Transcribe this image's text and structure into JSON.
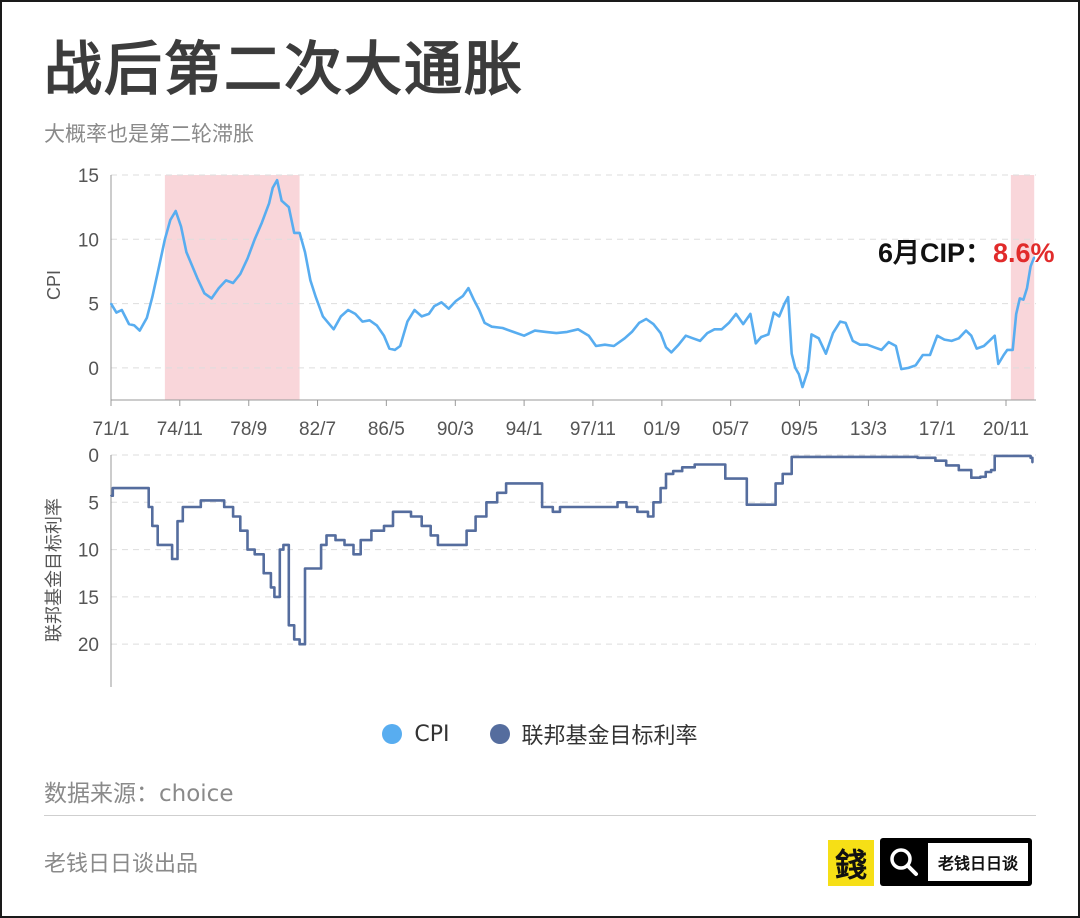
{
  "header": {
    "title": "战后第二次大通胀",
    "subtitle": "大概率也是第二轮滞胀"
  },
  "annotation": {
    "prefix": "6月CIP：",
    "value": "8.6%"
  },
  "legend": {
    "items": [
      {
        "label": "CPI",
        "color": "#58adf0"
      },
      {
        "label": "联邦基金目标利率",
        "color": "#556d9e"
      }
    ]
  },
  "footer": {
    "source": "数据来源：choice",
    "credit": "老钱日日谈出品",
    "brand_name": "老钱日日谈",
    "logo_char": "錢"
  },
  "colors": {
    "cpi_line": "#58adf0",
    "rate_line": "#556d9e",
    "highlight": "#f9d6da",
    "annotation_value": "#e12b2b",
    "grid": "#dddddd",
    "axis_text": "#555555"
  },
  "chart_data": [
    {
      "type": "line",
      "ylabel": "CPI",
      "ylim": [
        -2.5,
        15
      ],
      "yticks": [
        0,
        5,
        10,
        15
      ],
      "xlim": [
        1971.0,
        2022.5
      ],
      "xticks": [
        {
          "x": 1971.0,
          "label": "71/1"
        },
        {
          "x": 1974.83,
          "label": "74/11"
        },
        {
          "x": 1978.67,
          "label": "78/9"
        },
        {
          "x": 1982.5,
          "label": "82/7"
        },
        {
          "x": 1986.33,
          "label": "86/5"
        },
        {
          "x": 1990.17,
          "label": "90/3"
        },
        {
          "x": 1994.0,
          "label": "94/1"
        },
        {
          "x": 1997.83,
          "label": "97/11"
        },
        {
          "x": 2001.67,
          "label": "01/9"
        },
        {
          "x": 2005.5,
          "label": "05/7"
        },
        {
          "x": 2009.33,
          "label": "09/5"
        },
        {
          "x": 2013.17,
          "label": "13/3"
        },
        {
          "x": 2017.0,
          "label": "17/1"
        },
        {
          "x": 2020.83,
          "label": "20/11"
        }
      ],
      "grid": true,
      "highlight_ranges": [
        [
          1974.0,
          1981.5
        ],
        [
          2021.1,
          2022.4
        ]
      ],
      "series": [
        {
          "name": "CPI",
          "x": [
            1971.0,
            1971.3,
            1971.6,
            1972.0,
            1972.3,
            1972.6,
            1973.0,
            1973.3,
            1973.6,
            1974.0,
            1974.3,
            1974.6,
            1974.9,
            1975.2,
            1975.5,
            1975.8,
            1976.2,
            1976.6,
            1977.0,
            1977.4,
            1977.8,
            1978.2,
            1978.6,
            1979.0,
            1979.4,
            1979.8,
            1980.0,
            1980.25,
            1980.5,
            1980.9,
            1981.2,
            1981.5,
            1981.8,
            1982.1,
            1982.4,
            1982.8,
            1983.1,
            1983.4,
            1983.8,
            1984.2,
            1984.6,
            1985.0,
            1985.4,
            1985.8,
            1986.2,
            1986.5,
            1986.8,
            1987.1,
            1987.5,
            1987.9,
            1988.3,
            1988.7,
            1989.0,
            1989.4,
            1989.8,
            1990.2,
            1990.6,
            1990.9,
            1991.2,
            1991.5,
            1991.8,
            1992.2,
            1992.8,
            1993.4,
            1994.0,
            1994.6,
            1995.2,
            1995.8,
            1996.4,
            1997.0,
            1997.6,
            1998.0,
            1998.5,
            1999.0,
            1999.6,
            2000.0,
            2000.4,
            2000.8,
            2001.2,
            2001.6,
            2001.9,
            2002.2,
            2002.6,
            2003.0,
            2003.4,
            2003.8,
            2004.2,
            2004.6,
            2005.0,
            2005.4,
            2005.8,
            2006.2,
            2006.6,
            2006.9,
            2007.2,
            2007.6,
            2007.9,
            2008.2,
            2008.5,
            2008.7,
            2008.9,
            2009.1,
            2009.3,
            2009.5,
            2009.8,
            2010.0,
            2010.4,
            2010.8,
            2011.2,
            2011.6,
            2011.9,
            2012.3,
            2012.7,
            2013.1,
            2013.5,
            2013.9,
            2014.3,
            2014.7,
            2015.0,
            2015.4,
            2015.8,
            2016.2,
            2016.6,
            2017.0,
            2017.4,
            2017.8,
            2018.2,
            2018.6,
            2018.9,
            2019.2,
            2019.6,
            2019.9,
            2020.2,
            2020.4,
            2020.7,
            2020.9,
            2021.2,
            2021.4,
            2021.6,
            2021.8,
            2022.0,
            2022.2,
            2022.4
          ],
          "values": [
            5.0,
            4.3,
            4.5,
            3.4,
            3.3,
            2.9,
            3.9,
            5.5,
            7.4,
            10.0,
            11.5,
            12.2,
            11.0,
            9.0,
            8.0,
            7.0,
            5.8,
            5.4,
            6.2,
            6.8,
            6.6,
            7.3,
            8.5,
            10.0,
            11.3,
            12.8,
            14.0,
            14.6,
            13.0,
            12.5,
            10.5,
            10.5,
            9.0,
            6.8,
            5.5,
            4.0,
            3.5,
            3.0,
            4.0,
            4.5,
            4.2,
            3.6,
            3.7,
            3.3,
            2.5,
            1.5,
            1.4,
            1.7,
            3.6,
            4.5,
            4.0,
            4.2,
            4.8,
            5.1,
            4.6,
            5.2,
            5.6,
            6.2,
            5.3,
            4.5,
            3.5,
            3.2,
            3.1,
            2.8,
            2.5,
            2.9,
            2.8,
            2.7,
            2.8,
            3.0,
            2.5,
            1.7,
            1.8,
            1.7,
            2.3,
            2.8,
            3.5,
            3.8,
            3.4,
            2.7,
            1.6,
            1.2,
            1.8,
            2.5,
            2.3,
            2.1,
            2.7,
            3.0,
            3.0,
            3.5,
            4.2,
            3.4,
            4.2,
            1.9,
            2.4,
            2.6,
            4.3,
            4.0,
            5.0,
            5.5,
            1.1,
            0.0,
            -0.5,
            -1.5,
            -0.2,
            2.6,
            2.3,
            1.1,
            2.7,
            3.6,
            3.5,
            2.1,
            1.8,
            1.8,
            1.6,
            1.4,
            2.0,
            1.7,
            -0.1,
            0.0,
            0.2,
            1.0,
            1.0,
            2.5,
            2.2,
            2.1,
            2.3,
            2.9,
            2.5,
            1.5,
            1.7,
            2.1,
            2.5,
            0.3,
            1.0,
            1.4,
            1.4,
            4.2,
            5.4,
            5.3,
            6.2,
            7.9,
            8.6
          ]
        }
      ]
    },
    {
      "type": "line",
      "ylabel": "联邦基金目标利率",
      "ylim": [
        24,
        0
      ],
      "yticks": [
        0,
        5,
        10,
        15,
        20
      ],
      "xlim": [
        1971.0,
        2022.5
      ],
      "grid": true,
      "series": [
        {
          "name": "联邦基金目标利率",
          "step": true,
          "x": [
            1971.0,
            1971.1,
            1972.9,
            1973.1,
            1973.3,
            1973.6,
            1974.4,
            1974.7,
            1975.0,
            1975.5,
            1976.0,
            1976.6,
            1977.3,
            1977.8,
            1978.2,
            1978.6,
            1979.0,
            1979.5,
            1979.9,
            1980.1,
            1980.4,
            1980.6,
            1980.9,
            1981.2,
            1981.5,
            1981.8,
            1982.2,
            1982.7,
            1983.0,
            1983.5,
            1984.0,
            1984.5,
            1984.9,
            1985.5,
            1986.2,
            1986.7,
            1987.2,
            1987.7,
            1988.3,
            1988.8,
            1989.2,
            1989.6,
            1990.8,
            1991.3,
            1991.9,
            1992.5,
            1993.0,
            1993.5,
            1994.0,
            1994.5,
            1995.0,
            1995.6,
            1996.0,
            1997.2,
            1998.6,
            1999.2,
            1999.7,
            2000.3,
            2000.9,
            2001.2,
            2001.6,
            2001.9,
            2002.3,
            2002.8,
            2003.5,
            2004.5,
            2005.2,
            2006.4,
            2007.6,
            2008.0,
            2008.4,
            2008.9,
            2012.0,
            2015.9,
            2016.9,
            2017.5,
            2018.2,
            2018.9,
            2019.4,
            2019.7,
            2020.0,
            2020.2,
            2022.2,
            2022.3
          ],
          "values": [
            4.3,
            3.5,
            3.5,
            5.5,
            7.5,
            9.5,
            11.0,
            7.0,
            5.5,
            5.5,
            4.8,
            4.8,
            5.5,
            6.5,
            8.0,
            10.0,
            10.5,
            12.5,
            14.0,
            15.0,
            10.0,
            9.5,
            18.0,
            19.5,
            20.0,
            12.0,
            12.0,
            9.5,
            8.5,
            9.0,
            9.5,
            10.5,
            9.0,
            8.0,
            7.5,
            6.0,
            6.0,
            6.5,
            7.5,
            8.5,
            9.5,
            9.5,
            8.0,
            6.5,
            5.0,
            4.0,
            3.0,
            3.0,
            3.0,
            3.0,
            5.5,
            6.0,
            5.5,
            5.5,
            5.5,
            5.0,
            5.5,
            6.0,
            6.5,
            5.0,
            3.5,
            2.0,
            1.7,
            1.3,
            1.0,
            1.0,
            2.5,
            5.25,
            5.25,
            3.0,
            2.0,
            0.2,
            0.2,
            0.3,
            0.6,
            1.1,
            1.6,
            2.4,
            2.3,
            1.8,
            1.6,
            0.1,
            0.3,
            0.8
          ]
        }
      ]
    }
  ]
}
